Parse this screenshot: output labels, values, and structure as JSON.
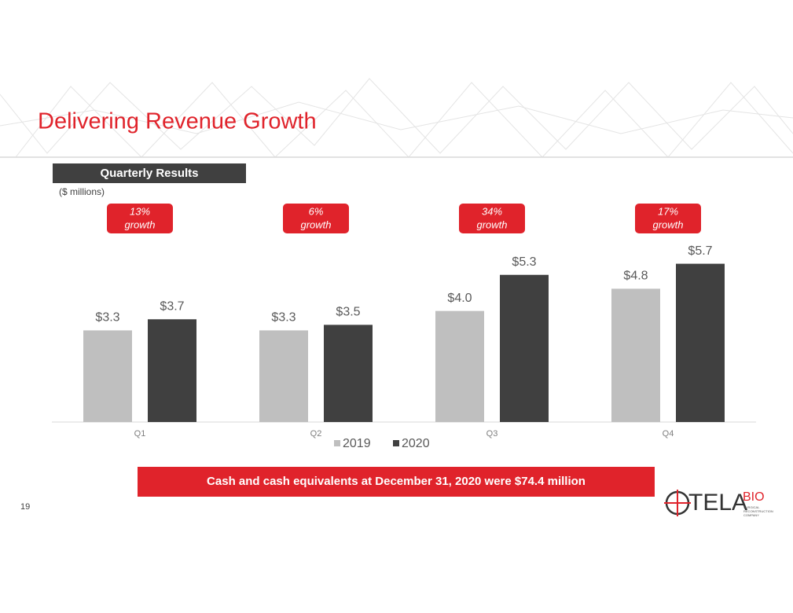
{
  "chart_data": {
    "type": "bar",
    "title": "Delivering Revenue Growth",
    "subtitle": "Quarterly Results",
    "unit_note": "($ millions)",
    "categories": [
      "Q1",
      "Q2",
      "Q3",
      "Q4"
    ],
    "series": [
      {
        "name": "2019",
        "color": "#bfbfbf",
        "values": [
          3.3,
          3.3,
          4.0,
          4.8
        ],
        "value_labels": [
          "$3.3",
          "$3.3",
          "$4.0",
          "$4.8"
        ]
      },
      {
        "name": "2020",
        "color": "#404040",
        "values": [
          3.7,
          3.5,
          5.3,
          5.7
        ],
        "value_labels": [
          "$3.7",
          "$3.5",
          "$5.3",
          "$5.7"
        ]
      }
    ],
    "ylim": [
      0,
      6
    ],
    "annotations": [
      {
        "text": "13%",
        "sub": "growth"
      },
      {
        "text": "6%",
        "sub": "growth"
      },
      {
        "text": "34%",
        "sub": "growth"
      },
      {
        "text": "17%",
        "sub": "growth"
      }
    ],
    "footer_banner": "Cash and cash equivalents at December 31, 2020 were $74.4 million",
    "page_number": "19",
    "logo": {
      "name": "TELA",
      "suffix": "BIO",
      "tagline": [
        "SURGICAL",
        "RECONSTRUCTION",
        "COMPANY"
      ]
    }
  }
}
